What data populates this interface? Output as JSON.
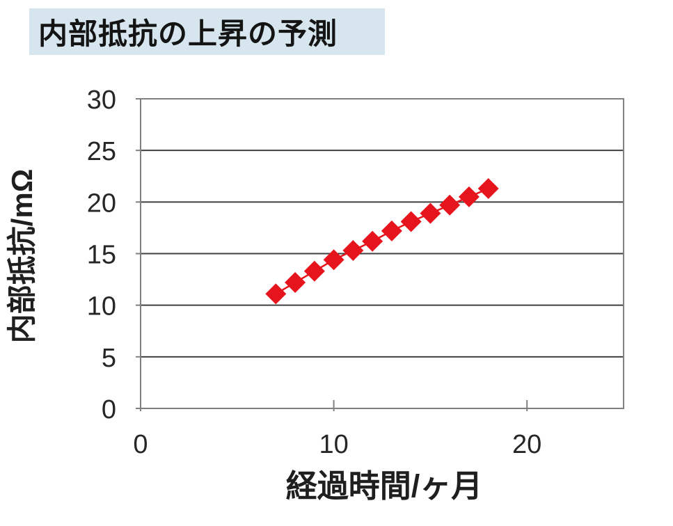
{
  "title": {
    "text": "内部抵抗の上昇の予測"
  },
  "colors": {
    "title_bg": "#d7e6ee",
    "text": "#1f1f1f",
    "tick_text": "#262626",
    "series_red": "#e6141c",
    "gridline": "#3f3f3f",
    "axis_border": "#808080"
  },
  "chart_data": {
    "type": "scatter",
    "title": "内部抵抗の上昇の予測",
    "xlabel": "経過時間/ヶ月",
    "ylabel": "内部抵抗/mΩ",
    "xlim": [
      0,
      25
    ],
    "ylim": [
      0,
      30
    ],
    "xticks": [
      0,
      10,
      20
    ],
    "yticks": [
      0,
      5,
      10,
      15,
      20,
      25,
      30
    ],
    "grid": "horizontal-only",
    "legend": "none",
    "marker": "diamond",
    "series": [
      {
        "x": [
          7,
          8,
          9,
          10,
          11,
          12,
          13,
          14,
          15,
          16,
          17,
          18
        ],
        "y": [
          11.1,
          12.2,
          13.3,
          14.4,
          15.3,
          16.2,
          17.2,
          18.1,
          18.9,
          19.7,
          20.5,
          21.3
        ],
        "color": "#e6141c"
      }
    ]
  }
}
